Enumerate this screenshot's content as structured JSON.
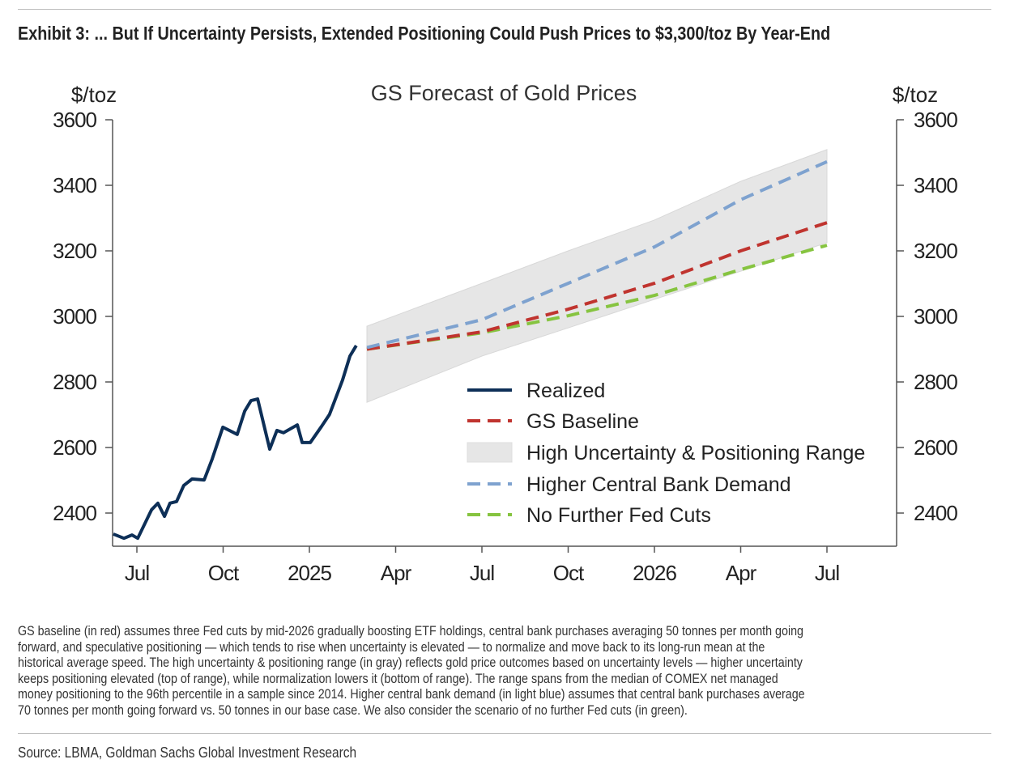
{
  "title": "Exhibit 3: ... But If Uncertainty Persists, Extended Positioning Could Push Prices to $3,300/toz By Year-End",
  "notes": [
    "GS baseline (in red) assumes three Fed cuts by mid-2026 gradually boosting ETF holdings, central bank purchases averaging 50 tonnes per month going",
    "forward, and speculative positioning — which tends to rise when uncertainty is elevated — to normalize and move back to its long-run mean at the",
    "historical average speed. The high uncertainty & positioning range (in gray) reflects gold price outcomes based on uncertainty levels — higher uncertainty",
    "keeps positioning elevated (top of range), while normalization lowers it (bottom of range). The range spans from the median of COMEX net managed",
    "money positioning to the 96th percentile in a sample since 2014. Higher central bank demand (in light blue) assumes that central bank purchases average",
    "70 tonnes per month going forward vs. 50 tonnes in our base case. We also consider the scenario of no further Fed cuts (in green)."
  ],
  "source": "Source: LBMA, Goldman Sachs Global Investment Research",
  "chart_data": {
    "type": "line",
    "title": "GS Forecast of Gold Prices",
    "ylabel_left": "$/toz",
    "ylabel_right": "$/toz",
    "x_unit_note": "months since Jan 2024",
    "xlim": [
      5.15,
      32.4
    ],
    "ylim": [
      2300,
      3600
    ],
    "yticks": [
      2400,
      2600,
      2800,
      3000,
      3200,
      3400,
      3600
    ],
    "xticks": [
      {
        "m": 6,
        "label": "Jul"
      },
      {
        "m": 9,
        "label": "Oct"
      },
      {
        "m": 12,
        "label": "2025"
      },
      {
        "m": 15,
        "label": "Apr"
      },
      {
        "m": 18,
        "label": "Jul"
      },
      {
        "m": 21,
        "label": "Oct"
      },
      {
        "m": 24,
        "label": "2026"
      },
      {
        "m": 27,
        "label": "Apr"
      },
      {
        "m": 30,
        "label": "Jul"
      }
    ],
    "legend_position": "center-right",
    "series": [
      {
        "name": "Realized",
        "color": "#0d2f57",
        "style": "solid",
        "x": [
          5.18,
          5.55,
          5.83,
          6.03,
          6.51,
          6.73,
          6.96,
          7.15,
          7.38,
          7.63,
          7.92,
          8.34,
          8.62,
          8.99,
          9.49,
          9.75,
          9.97,
          10.2,
          10.62,
          10.87,
          11.1,
          11.58,
          11.75,
          12.03,
          12.42,
          12.7,
          13.15,
          13.41,
          13.63
        ],
        "y": [
          2336,
          2323,
          2333,
          2323,
          2410,
          2430,
          2390,
          2430,
          2435,
          2484,
          2504,
          2501,
          2565,
          2662,
          2640,
          2711,
          2743,
          2748,
          2595,
          2652,
          2645,
          2669,
          2615,
          2615,
          2664,
          2701,
          2805,
          2879,
          2911
        ]
      },
      {
        "name": "GS Baseline",
        "color": "#c0342f",
        "style": "dashed",
        "x": [
          14,
          18,
          21,
          24,
          27,
          30
        ],
        "y": [
          2900,
          2953,
          3022,
          3101,
          3200,
          3286
        ]
      },
      {
        "name": "High Uncertainty & Positioning Range",
        "color": "#e6e6e6",
        "style": "band",
        "x": [
          14,
          18,
          21,
          24,
          27,
          30
        ],
        "upper": [
          2970,
          3101,
          3200,
          3294,
          3412,
          3509
        ],
        "lower": [
          2738,
          2879,
          2965,
          3052,
          3138,
          3225
        ]
      },
      {
        "name": "Higher Central Bank Demand",
        "color": "#7ea2cf",
        "style": "dashed",
        "x": [
          14,
          18,
          21,
          24,
          27,
          30
        ],
        "y": [
          2905,
          2990,
          3101,
          3212,
          3356,
          3472
        ]
      },
      {
        "name": "No Further Fed Cuts",
        "color": "#86c440",
        "style": "dashed",
        "x": [
          14,
          18,
          21,
          24,
          27,
          30
        ],
        "y": [
          2900,
          2950,
          3002,
          3064,
          3143,
          3217
        ]
      }
    ]
  }
}
